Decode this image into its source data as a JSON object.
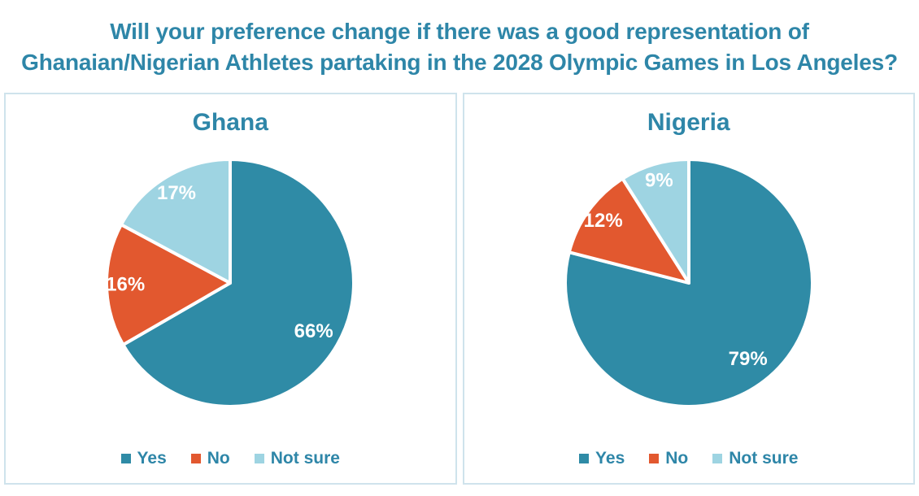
{
  "title": {
    "line1": "Will your preference change if there was a good representation of",
    "line2": "Ghanaian/Nigerian Athletes partaking in the 2028 Olympic Games in Los Angeles?",
    "color": "#2E86A8"
  },
  "palette": {
    "yes": "#2F8BA6",
    "no": "#E2582F",
    "not_sure": "#9ED4E2",
    "panel_border": "#CFE3EC",
    "label_text": "#FFFFFF",
    "legend_text": "#2E86A8"
  },
  "chart_data": [
    {
      "type": "pie",
      "title": "Ghana",
      "labels": [
        "Yes",
        "No",
        "Not sure"
      ],
      "values": [
        66,
        16,
        17
      ],
      "value_labels": [
        "66%",
        "16%",
        "17%"
      ],
      "colors": [
        "#2F8BA6",
        "#E2582F",
        "#9ED4E2"
      ],
      "start_angle_deg": 0,
      "direction": "clockwise",
      "legend_position": "bottom"
    },
    {
      "type": "pie",
      "title": "Nigeria",
      "labels": [
        "Yes",
        "No",
        "Not sure"
      ],
      "values": [
        79,
        12,
        9
      ],
      "value_labels": [
        "79%",
        "12%",
        "9%"
      ],
      "colors": [
        "#2F8BA6",
        "#E2582F",
        "#9ED4E2"
      ],
      "start_angle_deg": 0,
      "direction": "clockwise",
      "legend_position": "bottom"
    }
  ]
}
